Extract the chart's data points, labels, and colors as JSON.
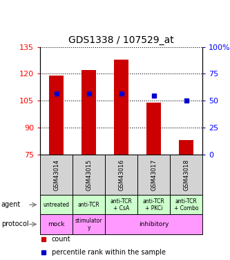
{
  "title": "GDS1338 / 107529_at",
  "samples": [
    "GSM43014",
    "GSM43015",
    "GSM43016",
    "GSM43017",
    "GSM43018"
  ],
  "bar_bottoms": [
    75,
    75,
    75,
    75,
    75
  ],
  "bar_tops": [
    119,
    122,
    128,
    104,
    83
  ],
  "percentile_values": [
    109,
    109,
    109,
    108,
    105
  ],
  "ylim_left": [
    75,
    135
  ],
  "ylim_right": [
    0,
    100
  ],
  "yticks_left": [
    75,
    90,
    105,
    120,
    135
  ],
  "yticks_right": [
    0,
    25,
    50,
    75,
    100
  ],
  "bar_color": "#cc0000",
  "percentile_color": "#0000cc",
  "bar_width": 0.45,
  "agent_labels": [
    "untreated",
    "anti-TCR",
    "anti-TCR\n+ CsA",
    "anti-TCR\n+ PKCi",
    "anti-TCR\n+ Combo"
  ],
  "agent_bg": "#ccffcc",
  "protocol_bg": "#ff99ff",
  "sample_bg": "#d3d3d3",
  "legend_count_color": "#cc0000",
  "legend_pct_color": "#0000cc"
}
